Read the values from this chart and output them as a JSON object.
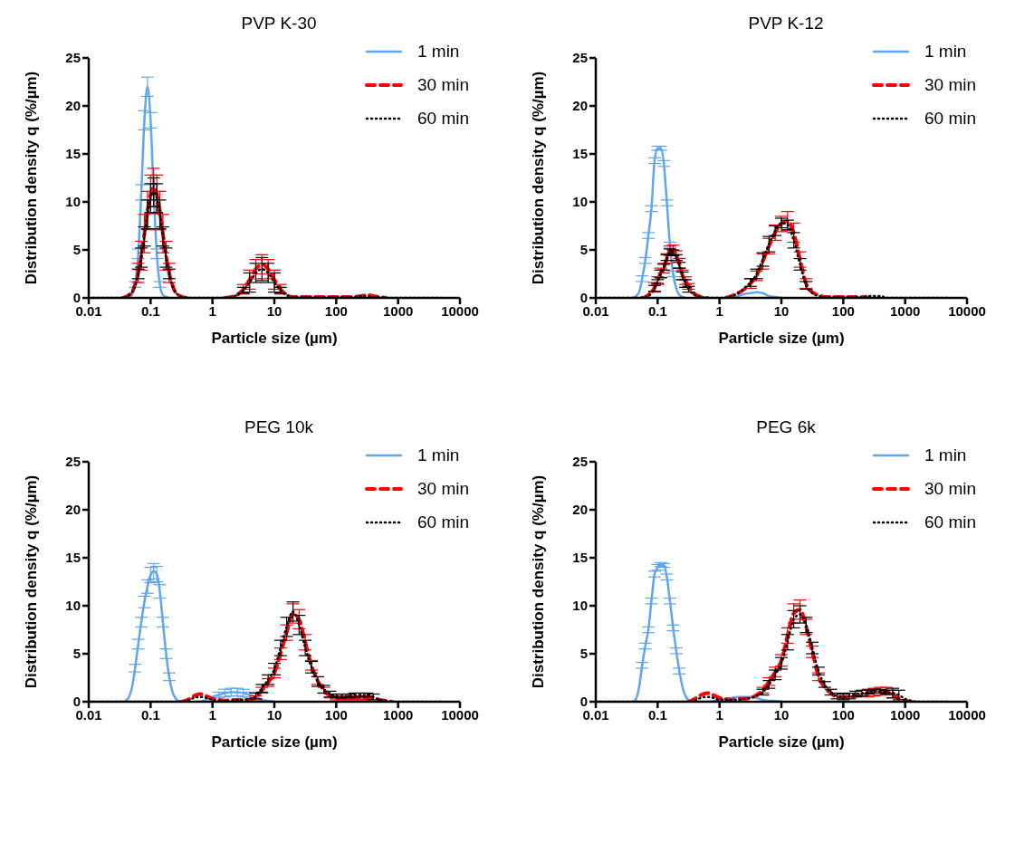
{
  "chart_data": [
    {
      "type": "line",
      "title": "PVP K-30",
      "xlabel": "Particle size (µm)",
      "ylabel": "Distribution density q (%/µm)",
      "log": "x",
      "xlim": [
        0.01,
        10000
      ],
      "xticks": [
        0.01,
        0.1,
        1,
        10,
        100,
        1000,
        10000
      ],
      "ylim": [
        0,
        25
      ],
      "yticks": [
        0,
        5,
        10,
        15,
        20,
        25
      ],
      "legend": "top right",
      "x": [
        0.01,
        0.0126,
        0.0158,
        0.02,
        0.0251,
        0.0316,
        0.0355,
        0.0398,
        0.0447,
        0.0501,
        0.0562,
        0.0631,
        0.0708,
        0.0794,
        0.0891,
        0.1,
        0.112,
        0.126,
        0.141,
        0.158,
        0.178,
        0.2,
        0.224,
        0.251,
        0.282,
        0.316,
        0.398,
        0.501,
        0.631,
        0.794,
        1,
        1.26,
        1.58,
        2,
        2.51,
        3.16,
        3.98,
        5.01,
        6.31,
        7.94,
        10,
        12.6,
        15.8,
        20,
        25.1,
        31.6,
        39.8,
        50.1,
        63.1,
        79.4,
        100,
        126,
        158,
        200,
        251,
        316,
        398,
        501,
        631,
        794,
        1000,
        1260,
        1580,
        2000,
        2510,
        3160,
        3980,
        5010
      ],
      "series": [
        {
          "name": "1 min",
          "color": "#5ea6f2",
          "line_style": "solid",
          "values": [
            null,
            null,
            null,
            null,
            null,
            null,
            null,
            0,
            0.1,
            0.3,
            1.4,
            4.6,
            11,
            18.5,
            22,
            18.5,
            11,
            4.6,
            1.4,
            0.3,
            0.1,
            0,
            null,
            null,
            null,
            null,
            null,
            null,
            null,
            null,
            null,
            null,
            null,
            null,
            null,
            null,
            null,
            null,
            null,
            null,
            null,
            null,
            null,
            null,
            null,
            null,
            null,
            null,
            null,
            null,
            null,
            null,
            null,
            null,
            null,
            null,
            null,
            null,
            null,
            null,
            null,
            null,
            null,
            null,
            null,
            null,
            null,
            null
          ],
          "errors": [
            null,
            null,
            null,
            null,
            null,
            null,
            null,
            null,
            null,
            null,
            0.3,
            0.5,
            0.8,
            1,
            1,
            0.8,
            0.8,
            0.5,
            0.3,
            null,
            null,
            null,
            null,
            null,
            null,
            null,
            null,
            null,
            null,
            null,
            null,
            null,
            null,
            null,
            null,
            null,
            null,
            null,
            null,
            null,
            null,
            null,
            null,
            null,
            null,
            null,
            null,
            null,
            null,
            null,
            null,
            null,
            null,
            null,
            null,
            null,
            null,
            null,
            null,
            null,
            null,
            null,
            null,
            null,
            null,
            null,
            null,
            null
          ]
        },
        {
          "name": "30 min",
          "color": "#ff0000",
          "line_style": "dashed",
          "values": [
            null,
            null,
            null,
            null,
            null,
            null,
            0,
            0.1,
            0.3,
            0.6,
            1.4,
            2.6,
            4.4,
            6.7,
            9.1,
            10.8,
            11.5,
            10.8,
            9.1,
            6.7,
            4.4,
            2.6,
            1.4,
            0.6,
            0.3,
            0.1,
            0,
            null,
            null,
            null,
            null,
            null,
            0,
            0.1,
            0.3,
            0.9,
            1.9,
            3.0,
            3.5,
            3.0,
            1.9,
            0.9,
            0.3,
            0.1,
            0.1,
            0.1,
            0.1,
            0.1,
            0.1,
            0.1,
            0.1,
            0.1,
            0.1,
            0.1,
            0.2,
            0.3,
            0.2,
            0.1,
            0,
            null,
            null,
            null,
            null,
            null,
            null,
            null,
            null,
            null
          ],
          "errors": [
            null,
            null,
            null,
            null,
            null,
            null,
            null,
            null,
            null,
            null,
            null,
            1,
            1.5,
            2,
            2,
            2,
            2,
            2,
            2,
            2,
            1.5,
            1,
            null,
            null,
            null,
            null,
            null,
            null,
            null,
            null,
            null,
            null,
            null,
            null,
            null,
            0.5,
            1,
            1,
            1,
            1,
            1,
            0.5,
            null,
            null,
            null,
            null,
            null,
            null,
            null,
            null,
            null,
            null,
            null,
            null,
            null,
            null,
            null,
            null,
            null,
            null,
            null,
            null,
            null,
            null,
            null,
            null,
            null,
            null
          ]
        },
        {
          "name": "60 min",
          "color": "#000000",
          "line_style": "dotted",
          "values": [
            0,
            0,
            0,
            0,
            0,
            0,
            0,
            0.1,
            0.3,
            0.6,
            1.3,
            2.5,
            4.2,
            6.4,
            8.7,
            10.4,
            11,
            10.4,
            8.7,
            6.4,
            4.2,
            2.5,
            1.3,
            0.6,
            0.3,
            0.1,
            0,
            0,
            0,
            0,
            0,
            0,
            0,
            0.1,
            0.3,
            0.8,
            1.6,
            2.6,
            3.0,
            2.6,
            1.6,
            0.8,
            0.3,
            0.1,
            0.1,
            0.1,
            0.1,
            0.1,
            0.1,
            0.1,
            0.1,
            0.1,
            0.1,
            0.1,
            0.2,
            0.2,
            0.1,
            0.1,
            0,
            0,
            0,
            0,
            0,
            0,
            0,
            0,
            0,
            0
          ],
          "errors": [
            null,
            null,
            null,
            null,
            null,
            null,
            null,
            null,
            null,
            null,
            null,
            0.5,
            1,
            1,
            1.5,
            1.5,
            1.5,
            1.5,
            1.5,
            1,
            1,
            0.5,
            null,
            null,
            null,
            null,
            null,
            null,
            null,
            null,
            null,
            null,
            null,
            null,
            null,
            0.3,
            1,
            1,
            1.2,
            1,
            1,
            0.3,
            null,
            null,
            null,
            null,
            null,
            null,
            null,
            null,
            null,
            null,
            null,
            null,
            null,
            null,
            null,
            null,
            null,
            null,
            null,
            null,
            null,
            null,
            null,
            null,
            null,
            null
          ]
        }
      ]
    },
    {
      "type": "line",
      "title": "PVP K-12",
      "xlabel": "Particle size (µm)",
      "ylabel": "Distribution density q (%/µm)",
      "log": "x",
      "xlim": [
        0.01,
        10000
      ],
      "xticks": [
        0.01,
        0.1,
        1,
        10,
        100,
        1000,
        10000
      ],
      "ylim": [
        0,
        25
      ],
      "yticks": [
        0,
        5,
        10,
        15,
        20,
        25
      ],
      "legend": "top right",
      "x": [
        0.01,
        0.0126,
        0.0158,
        0.02,
        0.0251,
        0.0316,
        0.0355,
        0.0398,
        0.0447,
        0.0501,
        0.0562,
        0.0631,
        0.0708,
        0.0794,
        0.0891,
        0.1,
        0.112,
        0.126,
        0.141,
        0.158,
        0.178,
        0.2,
        0.224,
        0.251,
        0.282,
        0.316,
        0.398,
        0.501,
        0.631,
        0.794,
        1,
        1.26,
        1.58,
        2,
        2.51,
        3.16,
        3.98,
        5.01,
        6.31,
        7.94,
        10,
        12.6,
        15.8,
        20,
        25.1,
        31.6,
        39.8,
        50.1,
        63.1,
        79.4,
        100,
        126,
        158,
        200,
        251,
        316,
        398,
        501,
        631,
        794,
        1000,
        1260,
        1580,
        2000,
        2510,
        3160,
        3980,
        5010
      ],
      "series": [
        {
          "name": "1 min",
          "color": "#5ea6f2",
          "line_style": "solid",
          "values": [
            null,
            null,
            null,
            null,
            null,
            null,
            null,
            0,
            0.2,
            0.6,
            2.0,
            3.9,
            6.5,
            9.3,
            14.3,
            15.6,
            15.6,
            14,
            9.9,
            5.5,
            2.5,
            1.0,
            0.3,
            0.1,
            0,
            null,
            null,
            null,
            null,
            null,
            null,
            null,
            0,
            0.2,
            0.4,
            0.5,
            0.6,
            0.5,
            0.2,
            0.1,
            0,
            null,
            null,
            null,
            null,
            null,
            null,
            null,
            null,
            null,
            null,
            null,
            null,
            null,
            null,
            null,
            null,
            null,
            null,
            null,
            null,
            null,
            null,
            null,
            null,
            null,
            null,
            null
          ],
          "errors": [
            null,
            null,
            null,
            null,
            null,
            null,
            null,
            null,
            null,
            null,
            0.3,
            0.3,
            0.3,
            0.3,
            0.3,
            0.2,
            0.2,
            0.3,
            0.3,
            0.3,
            0.3,
            null,
            null,
            null,
            null,
            null,
            null,
            null,
            null,
            null,
            null,
            null,
            null,
            null,
            null,
            null,
            null,
            null,
            null,
            null,
            null,
            null,
            null,
            null,
            null,
            null,
            null,
            null,
            null,
            null,
            null,
            null,
            null,
            null,
            null,
            null,
            null,
            null,
            null,
            null,
            null,
            null,
            null,
            null,
            null,
            null,
            null,
            null
          ]
        },
        {
          "name": "30 min",
          "color": "#ff0000",
          "line_style": "dashed",
          "values": [
            null,
            null,
            null,
            null,
            null,
            null,
            null,
            null,
            null,
            null,
            0,
            0.1,
            0.3,
            0.6,
            1.1,
            1.8,
            2.6,
            3.1,
            4.1,
            4.9,
            5.0,
            4.4,
            3.6,
            2.4,
            1.8,
            1.2,
            0.4,
            0.1,
            0,
            null,
            null,
            0,
            0.2,
            0.5,
            0.9,
            1.5,
            2.3,
            3.8,
            5.4,
            6.8,
            7.7,
            8.0,
            6.8,
            4.0,
            1.5,
            0.6,
            0.3,
            0.1,
            0.1,
            0.1,
            0.1,
            0.1,
            0.1,
            0.1,
            0,
            null,
            null,
            null,
            null,
            null,
            null,
            null,
            null,
            null,
            null,
            null,
            null,
            null
          ],
          "errors": [
            null,
            null,
            null,
            null,
            null,
            null,
            null,
            null,
            null,
            null,
            null,
            null,
            null,
            null,
            0.5,
            0.4,
            0.5,
            0.5,
            0.5,
            0.5,
            0.5,
            0.5,
            0.5,
            0.5,
            0.4,
            0.3,
            null,
            null,
            null,
            null,
            null,
            null,
            null,
            null,
            null,
            0.5,
            0.5,
            0.8,
            0.8,
            0.8,
            0.8,
            1,
            1,
            0.8,
            0.5,
            null,
            null,
            null,
            null,
            null,
            null,
            null,
            null,
            null,
            null,
            null,
            null,
            null,
            null,
            null,
            null,
            null,
            null,
            null,
            null,
            null,
            null,
            null
          ]
        },
        {
          "name": "60 min",
          "color": "#000000",
          "line_style": "dotted",
          "values": [
            0,
            0,
            0,
            0,
            0,
            0,
            0,
            0,
            0,
            0,
            0,
            0.1,
            0.2,
            0.5,
            1.0,
            1.7,
            2.5,
            3.2,
            4.2,
            4.8,
            4.7,
            4.2,
            3.4,
            2.3,
            1.5,
            0.9,
            0.3,
            0.1,
            0,
            0,
            0,
            0,
            0.2,
            0.5,
            1.0,
            1.6,
            2.5,
            4.0,
            5.6,
            7.0,
            7.8,
            7.6,
            6.0,
            3.5,
            1.3,
            0.5,
            0.2,
            0.1,
            0.1,
            0.1,
            0.1,
            0.1,
            0.1,
            0.1,
            0.2,
            0.2,
            0.2,
            0,
            0,
            0,
            0,
            0,
            0,
            0,
            0,
            0,
            0,
            0
          ],
          "errors": [
            null,
            null,
            null,
            null,
            null,
            null,
            null,
            null,
            null,
            null,
            null,
            null,
            null,
            null,
            0.3,
            0.2,
            0.4,
            0.3,
            0.3,
            0.3,
            0.3,
            0.3,
            0.3,
            0.4,
            0.4,
            0.3,
            null,
            null,
            null,
            null,
            null,
            null,
            null,
            null,
            null,
            0.4,
            0.5,
            0.7,
            0.8,
            0.5,
            0.5,
            0.5,
            0.8,
            0.6,
            0.4,
            null,
            null,
            null,
            null,
            null,
            null,
            null,
            null,
            null,
            null,
            null,
            null,
            null,
            null,
            null,
            null,
            null,
            null,
            null,
            null,
            null,
            null,
            null
          ]
        }
      ]
    },
    {
      "type": "line",
      "title": "PEG 10k",
      "xlabel": "Particle size (µm)",
      "ylabel": "Distribution density q (%/µm)",
      "log": "x",
      "xlim": [
        0.01,
        10000
      ],
      "xticks": [
        0.01,
        0.1,
        1,
        10,
        100,
        1000,
        10000
      ],
      "ylim": [
        0,
        25
      ],
      "yticks": [
        0,
        5,
        10,
        15,
        20,
        25
      ],
      "legend": "top right",
      "x": [
        0.01,
        0.0126,
        0.0158,
        0.02,
        0.0251,
        0.0316,
        0.0355,
        0.0398,
        0.0447,
        0.0501,
        0.0562,
        0.0631,
        0.0708,
        0.0794,
        0.0891,
        0.1,
        0.112,
        0.126,
        0.141,
        0.158,
        0.178,
        0.2,
        0.224,
        0.251,
        0.282,
        0.316,
        0.398,
        0.501,
        0.631,
        0.794,
        1,
        1.26,
        1.58,
        2,
        2.51,
        3.16,
        3.98,
        5.01,
        6.31,
        7.94,
        10,
        12.6,
        15.8,
        20,
        25.1,
        31.6,
        39.8,
        50.1,
        63.1,
        79.4,
        100,
        126,
        158,
        200,
        251,
        316,
        398,
        501,
        631,
        794,
        1000,
        1260,
        1580,
        2000,
        2510,
        3160,
        3980,
        5010
      ],
      "series": [
        {
          "name": "1 min",
          "color": "#5ea6f2",
          "line_style": "solid",
          "values": [
            null,
            null,
            null,
            null,
            null,
            null,
            0,
            0.1,
            0.5,
            1.5,
            3.5,
            6.0,
            8.3,
            10.4,
            12.0,
            13.2,
            13.6,
            13.3,
            11.5,
            8.3,
            5.0,
            2.6,
            1.1,
            0.4,
            0.1,
            0,
            null,
            null,
            0,
            0.2,
            0.5,
            0.7,
            0.9,
            1.0,
            1.0,
            0.9,
            0.7,
            0.5,
            0.2,
            0.1,
            0,
            null,
            null,
            null,
            null,
            null,
            null,
            null,
            null,
            null,
            null,
            null,
            null,
            null,
            null,
            null,
            null,
            null,
            null,
            null,
            null,
            null,
            null,
            null,
            null,
            null,
            null,
            null
          ],
          "errors": [
            null,
            null,
            null,
            null,
            null,
            null,
            null,
            null,
            null,
            null,
            0.4,
            0.5,
            0.5,
            0.6,
            0.7,
            0.8,
            0.8,
            0.8,
            0.7,
            0.5,
            0.5,
            0.4,
            null,
            null,
            null,
            null,
            null,
            null,
            null,
            null,
            null,
            0.3,
            0.4,
            0.4,
            0.4,
            0.4,
            0.3,
            null,
            null,
            null,
            null,
            null,
            null,
            null,
            null,
            null,
            null,
            null,
            null,
            null,
            null,
            null,
            null,
            null,
            null,
            null,
            null,
            null,
            null,
            null,
            null,
            null,
            null,
            null,
            null,
            null,
            null,
            null
          ]
        },
        {
          "name": "30 min",
          "color": "#ff0000",
          "line_style": "dashed",
          "values": [
            null,
            null,
            null,
            null,
            null,
            null,
            null,
            null,
            null,
            null,
            null,
            null,
            null,
            null,
            null,
            null,
            null,
            null,
            null,
            null,
            null,
            null,
            null,
            null,
            null,
            0,
            0.2,
            0.6,
            0.8,
            0.6,
            0.3,
            0.2,
            0.1,
            0.2,
            0.2,
            0.2,
            0.2,
            0.4,
            1.2,
            2.0,
            3.0,
            5.0,
            7.2,
            9.2,
            8.6,
            6.2,
            3.8,
            2.2,
            1.2,
            0.6,
            0.4,
            0.4,
            0.4,
            0.4,
            0.4,
            0.4,
            0.4,
            0.2,
            0.1,
            0,
            null,
            null,
            null,
            null,
            null,
            null,
            null,
            null
          ],
          "errors": [
            null,
            null,
            null,
            null,
            null,
            null,
            null,
            null,
            null,
            null,
            null,
            null,
            null,
            null,
            null,
            null,
            null,
            null,
            null,
            null,
            null,
            null,
            null,
            null,
            null,
            null,
            null,
            null,
            null,
            null,
            null,
            null,
            null,
            null,
            null,
            null,
            null,
            0.2,
            0.3,
            0.4,
            0.5,
            0.6,
            0.8,
            1.0,
            1.0,
            0.8,
            0.5,
            0.4,
            0.3,
            0.2,
            0.2,
            0.2,
            0.2,
            0.2,
            0.2,
            0.2,
            null,
            null,
            null,
            null,
            null,
            null,
            null,
            null,
            null,
            null,
            null,
            null
          ]
        },
        {
          "name": "60 min",
          "color": "#000000",
          "line_style": "dotted",
          "values": [
            0,
            0,
            0,
            0,
            0,
            0,
            0,
            0,
            0,
            0,
            0,
            0,
            0,
            0,
            0,
            0,
            0,
            0,
            0,
            0,
            0,
            0,
            0,
            0,
            0,
            0,
            0.1,
            0.4,
            0.5,
            0.4,
            0.2,
            0.1,
            0.1,
            0.1,
            0.2,
            0.2,
            0.3,
            0.6,
            1.4,
            2.3,
            3.4,
            5.6,
            7.8,
            9.4,
            8.0,
            5.6,
            3.6,
            2.1,
            1.3,
            0.8,
            0.6,
            0.6,
            0.6,
            0.7,
            0.7,
            0.7,
            0.5,
            0.2,
            0.1,
            0,
            0,
            0,
            0,
            0,
            0,
            0,
            0,
            0
          ],
          "errors": [
            null,
            null,
            null,
            null,
            null,
            null,
            null,
            null,
            null,
            null,
            null,
            null,
            null,
            null,
            null,
            null,
            null,
            null,
            null,
            null,
            null,
            null,
            null,
            null,
            null,
            null,
            null,
            null,
            null,
            null,
            null,
            null,
            null,
            null,
            null,
            null,
            null,
            0.3,
            0.4,
            0.5,
            0.6,
            0.8,
            1.0,
            1.0,
            1.0,
            0.8,
            0.6,
            0.5,
            0.4,
            0.3,
            0.2,
            0.2,
            0.2,
            0.2,
            0.2,
            0.2,
            0.3,
            null,
            null,
            null,
            null,
            null,
            null,
            null,
            null,
            null,
            null,
            null
          ]
        }
      ]
    },
    {
      "type": "line",
      "title": "PEG 6k",
      "xlabel": "Particle size (µm)",
      "ylabel": "Distribution density q (%/µm)",
      "log": "x",
      "xlim": [
        0.01,
        10000
      ],
      "xticks": [
        0.01,
        0.1,
        1,
        10,
        100,
        1000,
        10000
      ],
      "ylim": [
        0,
        25
      ],
      "yticks": [
        0,
        5,
        10,
        15,
        20,
        25
      ],
      "legend": "top right",
      "x": [
        0.01,
        0.0126,
        0.0158,
        0.02,
        0.0251,
        0.0316,
        0.0355,
        0.0398,
        0.0447,
        0.0501,
        0.0562,
        0.0631,
        0.0708,
        0.0794,
        0.0891,
        0.1,
        0.112,
        0.126,
        0.141,
        0.158,
        0.178,
        0.2,
        0.224,
        0.251,
        0.282,
        0.316,
        0.398,
        0.501,
        0.631,
        0.794,
        1,
        1.26,
        1.58,
        2,
        2.51,
        3.16,
        3.98,
        5.01,
        6.31,
        7.94,
        10,
        12.6,
        15.8,
        20,
        25.1,
        31.6,
        39.8,
        50.1,
        63.1,
        79.4,
        100,
        126,
        158,
        200,
        251,
        316,
        398,
        501,
        631,
        794,
        1000,
        1260,
        1580,
        2000,
        2510,
        3160,
        3980,
        5010
      ],
      "series": [
        {
          "name": "1 min",
          "color": "#5ea6f2",
          "line_style": "solid",
          "values": [
            null,
            null,
            null,
            null,
            null,
            null,
            null,
            0,
            0.3,
            1.5,
            3.8,
            5.8,
            7.5,
            10.5,
            13.3,
            14.0,
            14.3,
            14.2,
            13.0,
            10.5,
            7.7,
            5.3,
            3.2,
            1.6,
            0.6,
            0.2,
            0.1,
            0,
            0,
            0.1,
            0.2,
            0.3,
            0.4,
            0.5,
            0.5,
            0.5,
            0.4,
            0.2,
            0.1,
            0.1,
            0,
            null,
            null,
            null,
            null,
            null,
            null,
            null,
            null,
            null,
            null,
            null,
            null,
            null,
            null,
            null,
            null,
            null,
            null,
            null,
            null,
            null,
            null,
            null,
            null,
            null,
            null,
            null
          ],
          "errors": [
            null,
            null,
            null,
            null,
            null,
            null,
            null,
            null,
            null,
            null,
            0.3,
            0.3,
            0.3,
            0.3,
            0.3,
            0.3,
            0.2,
            0.2,
            0.3,
            0.3,
            0.3,
            0.3,
            0.3,
            null,
            null,
            null,
            null,
            null,
            null,
            null,
            null,
            null,
            null,
            null,
            null,
            null,
            null,
            null,
            null,
            null,
            null,
            null,
            null,
            null,
            null,
            null,
            null,
            null,
            null,
            null,
            null,
            null,
            null,
            null,
            null,
            null,
            null,
            null,
            null,
            null,
            null,
            null,
            null,
            null,
            null,
            null,
            null,
            null
          ]
        },
        {
          "name": "30 min",
          "color": "#ff0000",
          "line_style": "dashed",
          "values": [
            null,
            null,
            null,
            null,
            null,
            null,
            null,
            null,
            null,
            null,
            null,
            null,
            null,
            null,
            null,
            null,
            null,
            null,
            null,
            null,
            null,
            null,
            null,
            null,
            null,
            0,
            0.3,
            0.7,
            0.9,
            0.7,
            0.4,
            0.3,
            0.2,
            0.3,
            0.3,
            0.4,
            0.7,
            1.2,
            2.1,
            3.1,
            4.3,
            6.9,
            9.2,
            9.6,
            7.8,
            5.2,
            2.6,
            1.5,
            0.9,
            0.5,
            0.5,
            0.5,
            0.6,
            0.7,
            0.9,
            1.0,
            1.1,
            1.1,
            0.8,
            0.3,
            0.1,
            0,
            null,
            null,
            null,
            null,
            null,
            null
          ],
          "errors": [
            null,
            null,
            null,
            null,
            null,
            null,
            null,
            null,
            null,
            null,
            null,
            null,
            null,
            null,
            null,
            null,
            null,
            null,
            null,
            null,
            null,
            null,
            null,
            null,
            null,
            null,
            null,
            null,
            null,
            null,
            null,
            null,
            null,
            null,
            null,
            null,
            null,
            0.3,
            0.4,
            0.5,
            0.6,
            0.8,
            1.0,
            1.0,
            0.8,
            0.6,
            0.4,
            null,
            null,
            null,
            null,
            null,
            null,
            null,
            0.4,
            0.4,
            0.4,
            0.4,
            0.4,
            null,
            null,
            null,
            null,
            null,
            null,
            null,
            null,
            null
          ]
        },
        {
          "name": "60 min",
          "color": "#000000",
          "line_style": "dotted",
          "values": [
            0,
            0,
            0,
            0,
            0,
            0,
            0,
            0,
            0,
            0,
            0,
            0,
            0,
            0,
            0,
            0,
            0,
            0,
            0,
            0,
            0,
            0,
            0,
            0,
            0,
            0,
            0.1,
            0.4,
            0.5,
            0.4,
            0.2,
            0.2,
            0.2,
            0.2,
            0.3,
            0.4,
            0.6,
            1.0,
            1.8,
            2.8,
            4.0,
            6.2,
            8.6,
            9.1,
            8.0,
            5.6,
            3.2,
            1.8,
            1.0,
            0.6,
            0.5,
            0.6,
            0.8,
            0.9,
            1.0,
            1.1,
            1.1,
            1.0,
            0.9,
            0.7,
            0.3,
            0.1,
            0,
            0,
            0,
            0,
            0,
            0
          ],
          "errors": [
            null,
            null,
            null,
            null,
            null,
            null,
            null,
            null,
            null,
            null,
            null,
            null,
            null,
            null,
            null,
            null,
            null,
            null,
            null,
            null,
            null,
            null,
            null,
            null,
            null,
            null,
            null,
            null,
            null,
            null,
            null,
            null,
            null,
            null,
            null,
            null,
            null,
            0.3,
            0.4,
            0.5,
            0.6,
            0.8,
            0.9,
            0.9,
            0.8,
            0.6,
            0.4,
            0.3,
            0.3,
            0.3,
            0.3,
            0.3,
            0.3,
            0.3,
            0.2,
            0.2,
            0.2,
            0.2,
            0.5,
            0.5,
            null,
            null,
            null,
            null,
            null,
            null,
            null,
            null
          ]
        }
      ]
    }
  ]
}
